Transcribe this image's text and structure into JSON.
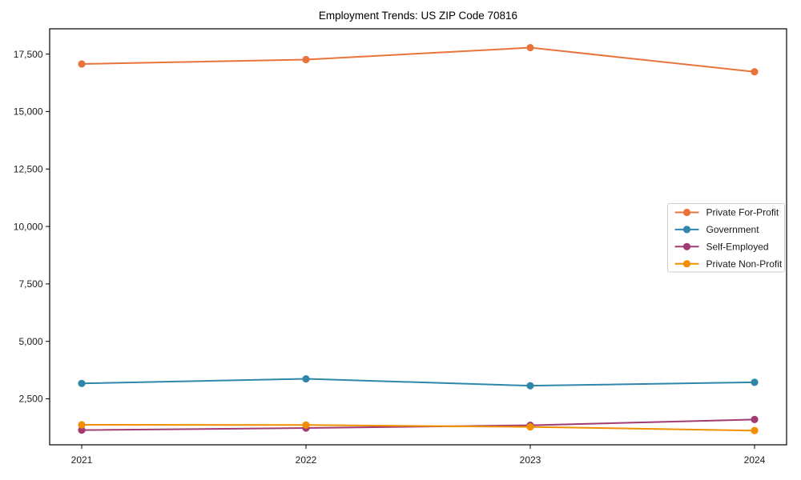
{
  "chart_data": {
    "type": "line",
    "title": "Employment Trends: US ZIP Code 70816",
    "xlabel": "",
    "ylabel": "",
    "x_categories": [
      "2021",
      "2022",
      "2023",
      "2024"
    ],
    "series": [
      {
        "name": "Private For-Profit",
        "color": "#E8743B",
        "values": [
          17070,
          17260,
          17780,
          16730
        ]
      },
      {
        "name": "Government",
        "color": "#2E86AB",
        "values": [
          3170,
          3370,
          3070,
          3220
        ]
      },
      {
        "name": "Self-Employed",
        "color": "#A23B72",
        "values": [
          1140,
          1230,
          1350,
          1600
        ]
      },
      {
        "name": "Private Non-Profit",
        "color": "#F18F01",
        "values": [
          1370,
          1360,
          1280,
          1120
        ]
      }
    ],
    "y_ticks": [
      2500,
      5000,
      7500,
      10000,
      12500,
      15000,
      17500
    ],
    "y_tick_labels": [
      "2,500",
      "5,000",
      "7,500",
      "10,000",
      "12,500",
      "15,000",
      "17,500"
    ],
    "ylim": [
      500,
      18600
    ],
    "grid": false,
    "marker_style": "circle",
    "legend_position": "center-right",
    "spine_color": "#000000",
    "text_color": "#1a1a1a",
    "background_color": "#ffffff"
  }
}
